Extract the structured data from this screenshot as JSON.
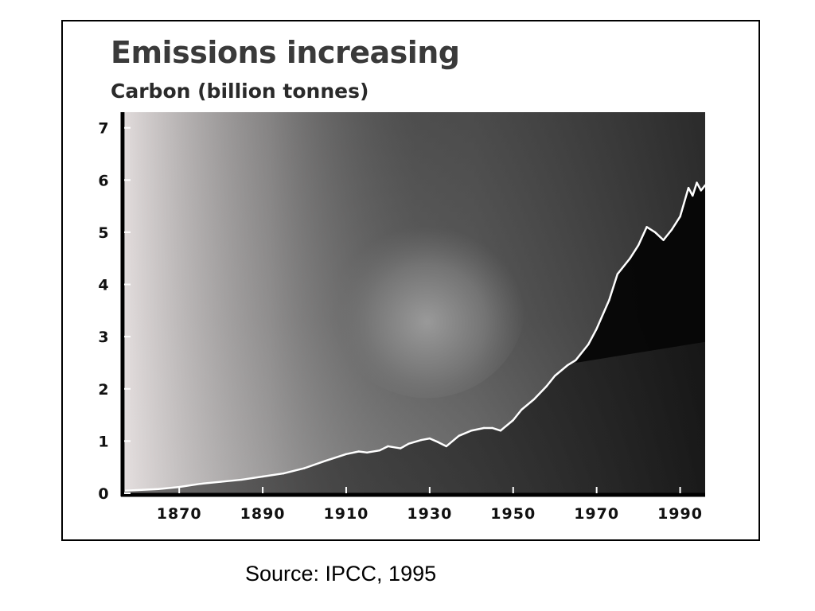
{
  "chart_data": {
    "type": "area",
    "title": "Emissions increasing",
    "subtitle": "Carbon (billion tonnes)",
    "xlabel": "",
    "ylabel": "",
    "xlim": [
      1857,
      1996
    ],
    "ylim": [
      0,
      7.3
    ],
    "x_ticks": [
      1870,
      1890,
      1910,
      1930,
      1950,
      1970,
      1990
    ],
    "y_ticks": [
      0,
      1,
      2,
      3,
      4,
      5,
      6,
      7
    ],
    "grid": false,
    "legend": "none",
    "series": [
      {
        "x": [
          1857,
          1865,
          1870,
          1875,
          1880,
          1885,
          1890,
          1895,
          1900,
          1905,
          1910,
          1913,
          1915,
          1918,
          1920,
          1923,
          1925,
          1928,
          1930,
          1932,
          1934,
          1937,
          1940,
          1943,
          1945,
          1947,
          1950,
          1952,
          1955,
          1958,
          1960,
          1963,
          1965,
          1968,
          1970,
          1973,
          1975,
          1978,
          1980,
          1982,
          1984,
          1986,
          1988,
          1990,
          1992,
          1993,
          1994,
          1995,
          1996
        ],
        "values": [
          0.05,
          0.08,
          0.12,
          0.18,
          0.22,
          0.26,
          0.32,
          0.38,
          0.48,
          0.62,
          0.75,
          0.8,
          0.78,
          0.82,
          0.9,
          0.86,
          0.95,
          1.02,
          1.05,
          0.98,
          0.9,
          1.1,
          1.2,
          1.25,
          1.25,
          1.2,
          1.4,
          1.6,
          1.8,
          2.05,
          2.25,
          2.45,
          2.55,
          2.85,
          3.15,
          3.7,
          4.2,
          4.5,
          4.75,
          5.1,
          5.0,
          4.85,
          5.05,
          5.3,
          5.85,
          5.7,
          5.95,
          5.8,
          5.9
        ]
      }
    ],
    "colors": {
      "line": "#ffffff",
      "area": "#050505",
      "sky_top": "#737373",
      "sky_bottom": "#bdbdbd",
      "axis": "#000000"
    }
  },
  "source": "Source: IPCC, 1995"
}
